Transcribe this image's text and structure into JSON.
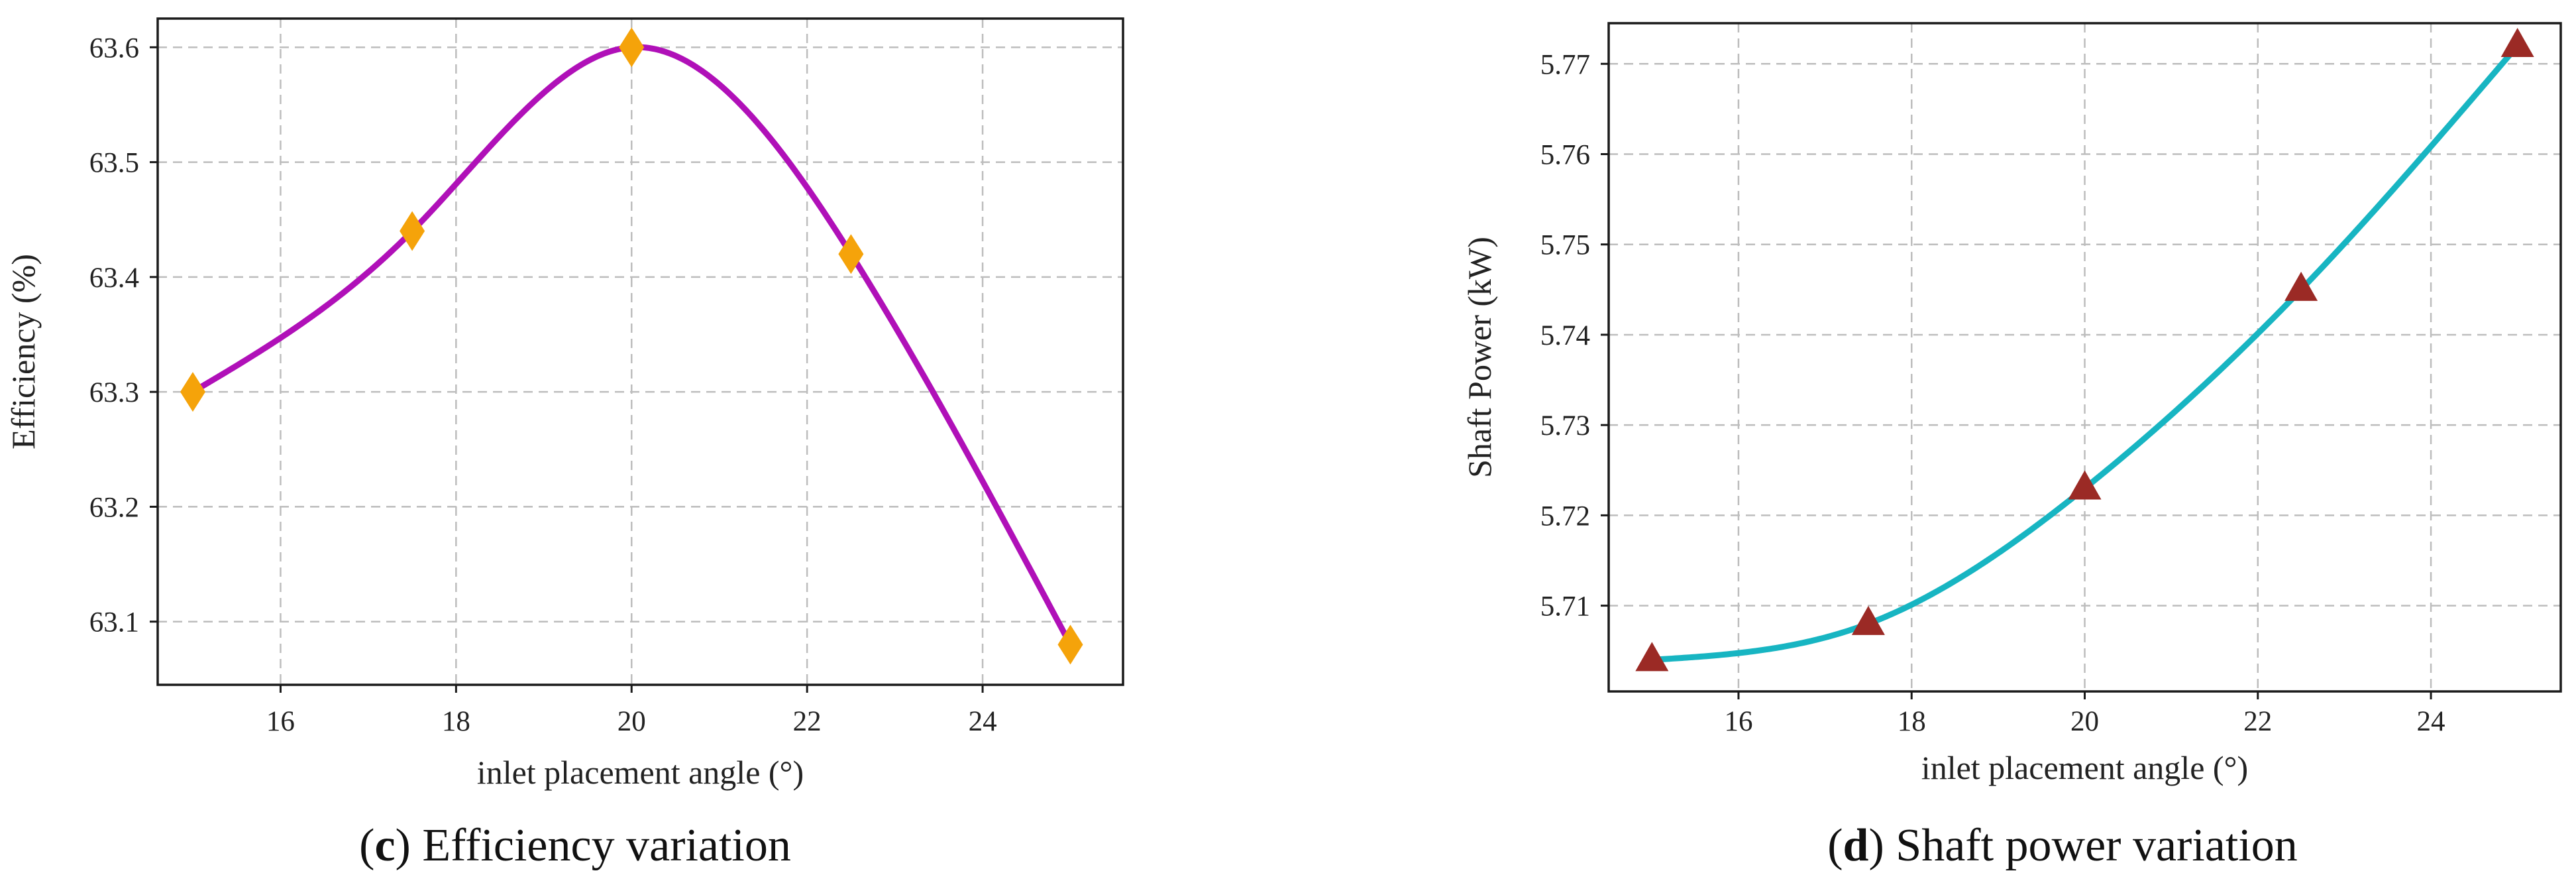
{
  "chart_data": [
    {
      "type": "line",
      "panel": "c",
      "caption_letter": "c",
      "caption_text": " Efficiency variation",
      "xlabel": "inlet placement angle (°)",
      "ylabel": "Efficiency (%)",
      "xlim": [
        14.6,
        25.6
      ],
      "ylim": [
        63.045,
        63.625
      ],
      "xticks": [
        16,
        18,
        20,
        22,
        24
      ],
      "yticks": [
        63.1,
        63.2,
        63.3,
        63.4,
        63.5,
        63.6
      ],
      "grid": true,
      "line_color": "#b010b8",
      "marker": "diamond",
      "marker_color": "#f5a30a",
      "series": [
        {
          "x": [
            15,
            17.5,
            20,
            22.5,
            25
          ],
          "values": [
            63.3,
            63.44,
            63.6,
            63.42,
            63.08
          ]
        }
      ]
    },
    {
      "type": "line",
      "panel": "d",
      "caption_letter": "d",
      "caption_text": " Shaft power variation",
      "xlabel": "inlet placement angle (°)",
      "ylabel": "Shaft Power (kW)",
      "xlim": [
        14.5,
        25.5
      ],
      "ylim": [
        5.7005,
        5.7745
      ],
      "xticks": [
        16,
        18,
        20,
        22,
        24
      ],
      "yticks": [
        5.71,
        5.72,
        5.73,
        5.74,
        5.75,
        5.76,
        5.77
      ],
      "grid": true,
      "line_color": "#17b5c2",
      "marker": "triangle",
      "marker_color": "#9b2a25",
      "series": [
        {
          "x": [
            15,
            17.5,
            20,
            22.5,
            25
          ],
          "values": [
            5.704,
            5.708,
            5.723,
            5.745,
            5.772
          ]
        }
      ]
    }
  ]
}
